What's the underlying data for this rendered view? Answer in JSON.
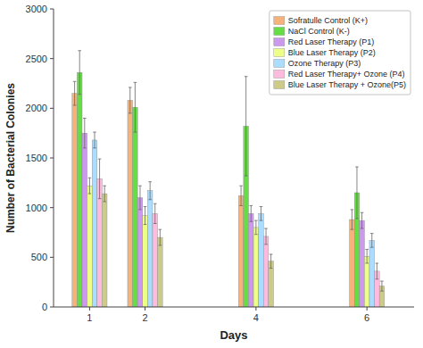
{
  "chart_data": {
    "type": "bar",
    "xlabel": "Days",
    "ylabel": "Number of Bacterial Colonies",
    "x": [
      1,
      2,
      4,
      6
    ],
    "xlim": [
      0.35,
      6.85
    ],
    "xticks": [
      1,
      2,
      4,
      6
    ],
    "ylim": [
      0,
      3000
    ],
    "yticks": [
      0,
      500,
      1000,
      1500,
      2000,
      2500,
      3000
    ],
    "legend": "upper right",
    "series": [
      {
        "name": "Sofratulle Control (K+)",
        "color": "#F5B27A",
        "values": [
          2150,
          2080,
          1120,
          880
        ],
        "errors": [
          120,
          130,
          100,
          100
        ]
      },
      {
        "name": "NaCl Control (K-)",
        "color": "#66DD44",
        "values": [
          2360,
          2010,
          1820,
          1150
        ],
        "errors": [
          220,
          250,
          500,
          260
        ]
      },
      {
        "name": "Red Laser Therapy (P1)",
        "color": "#CC99EE",
        "values": [
          1750,
          1100,
          940,
          870
        ],
        "errors": [
          150,
          120,
          80,
          80
        ]
      },
      {
        "name": "Blue Laser Therapy (P2)",
        "color": "#EEFF88",
        "values": [
          1220,
          920,
          800,
          510
        ],
        "errors": [
          80,
          90,
          70,
          70
        ]
      },
      {
        "name": "Ozone Therapy (P3)",
        "color": "#AADDFF",
        "values": [
          1680,
          1170,
          940,
          670
        ],
        "errors": [
          80,
          90,
          70,
          70
        ]
      },
      {
        "name": "Red Laser Therapy+ Ozone (P4)",
        "color": "#FFBBDD",
        "values": [
          1290,
          940,
          710,
          360
        ],
        "errors": [
          200,
          100,
          80,
          80
        ]
      },
      {
        "name": "Blue Laser Therapy + Ozone(P5)",
        "color": "#CCCC88",
        "values": [
          1140,
          700,
          460,
          210
        ],
        "errors": [
          80,
          80,
          70,
          50
        ]
      }
    ]
  }
}
